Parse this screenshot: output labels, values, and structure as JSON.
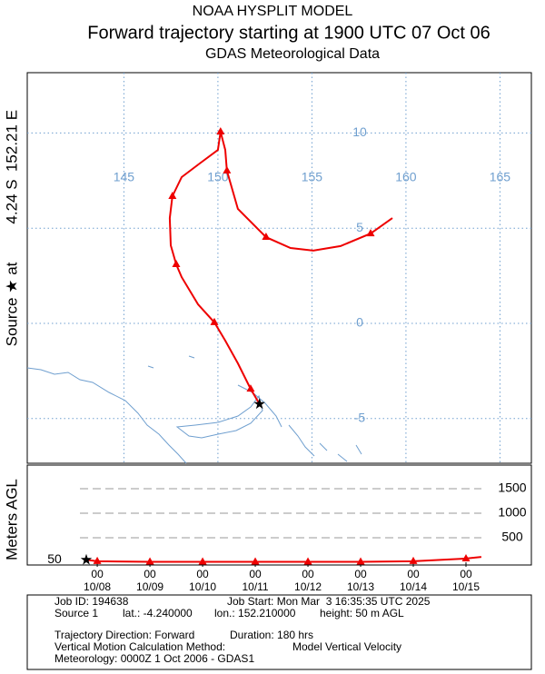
{
  "header": {
    "title": "NOAA HYSPLIT MODEL",
    "subtitle": "Forward trajectory starting at 1900 UTC 07 Oct 06",
    "data_source": "GDAS Meteorological Data"
  },
  "chart_data": [
    {
      "type": "trajectory-map",
      "side_label": [
        "Source ★ at",
        "4.24 S",
        "152.21 E"
      ],
      "xlim": [
        139.86,
        166.67
      ],
      "ylim": [
        -7.35,
        13.17
      ],
      "xticks": [
        145,
        150,
        155,
        160,
        165
      ],
      "yticks": [
        -5,
        0,
        5,
        10
      ],
      "grid": true,
      "grid_color": "#6f9fcf",
      "color": "#ee0000",
      "source": {
        "lon": 152.21,
        "lat": -4.24
      },
      "x": [
        152.21,
        151.74,
        151.06,
        150.39,
        149.81,
        148.94,
        148.07,
        147.78,
        147.49,
        147.44,
        147.58,
        148.07,
        149.03,
        150.0,
        150.14,
        150.39,
        150.48,
        151.06,
        152.56,
        153.86,
        155.07,
        156.52,
        158.12,
        159.28
      ],
      "values": [
        -4.24,
        -3.44,
        -2.1,
        -0.91,
        0.05,
        1.0,
        2.43,
        3.1,
        4.1,
        5.53,
        6.68,
        7.68,
        8.4,
        9.11,
        10.07,
        9.11,
        8.02,
        6.01,
        4.53,
        3.96,
        3.82,
        4.06,
        4.72,
        5.53
      ],
      "markers": {
        "x": [
          151.74,
          149.81,
          147.78,
          147.58,
          150.14,
          150.48,
          152.56,
          158.12
        ],
        "values": [
          -3.44,
          0.05,
          3.1,
          6.68,
          10.07,
          8.02,
          4.53,
          4.72
        ]
      }
    },
    {
      "type": "height",
      "y_label": "Meters AGL",
      "start_height": 50,
      "xlim": [
        -26.9,
        202.8
      ],
      "ylim": [
        0,
        1980
      ],
      "yticks": [
        500,
        1000,
        1500
      ],
      "tick_hour": "00",
      "xticks": [
        {
          "value": 5,
          "label": "10/08"
        },
        {
          "value": 29,
          "label": "10/09"
        },
        {
          "value": 53,
          "label": "10/10"
        },
        {
          "value": 77,
          "label": "10/11"
        },
        {
          "value": 101,
          "label": "10/12"
        },
        {
          "value": 125,
          "label": "10/13"
        },
        {
          "value": 149,
          "label": "10/14"
        },
        {
          "value": 173,
          "label": "10/15"
        }
      ],
      "color": "#ee0000",
      "x": [
        0,
        5,
        29,
        53,
        77,
        101,
        125,
        149,
        173,
        180
      ],
      "values": [
        50,
        20,
        10,
        10,
        10,
        10,
        10,
        20,
        75,
        110
      ],
      "markers": {
        "x": [
          5,
          29,
          53,
          77,
          101,
          125,
          149,
          173
        ],
        "values": [
          20,
          10,
          10,
          10,
          10,
          10,
          20,
          75
        ]
      }
    }
  ],
  "footer": {
    "job_id": "Job ID: 194638",
    "job_start": "Job Start: Mon Mar  3 16:35:35 UTC 2025",
    "source": "Source 1",
    "lat": "lat.: -4.240000",
    "lon": "lon.: 152.210000",
    "height": "height: 50 m AGL",
    "direction": "Trajectory Direction: Forward",
    "duration": "Duration: 180 hrs",
    "method_label": "Vertical Motion Calculation Method:",
    "method": "Model Vertical Velocity",
    "meteorology": "Meteorology: 0000Z 1 Oct 2006 - GDAS1"
  }
}
